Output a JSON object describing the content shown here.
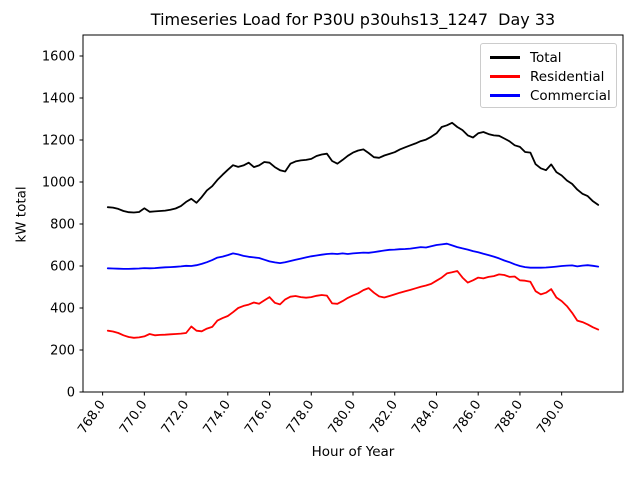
{
  "chart_data": {
    "type": "line",
    "title": "Timeseries Load for P30U p30uhs13_1247  Day 33",
    "xlabel": "Hour of Year",
    "ylabel": "kW total",
    "xlim": [
      767.06,
      792.94
    ],
    "ylim": [
      0,
      1700
    ],
    "grid": false,
    "legend_position": "upper right",
    "xticks": [
      768,
      770,
      772,
      774,
      776,
      778,
      780,
      782,
      784,
      786,
      788,
      790
    ],
    "xtick_labels": [
      "768.0",
      "770.0",
      "772.0",
      "774.0",
      "776.0",
      "778.0",
      "780.0",
      "782.0",
      "784.0",
      "786.0",
      "788.0",
      "790.0"
    ],
    "xtick_rotation_deg": 55,
    "yticks": [
      0,
      200,
      400,
      600,
      800,
      1000,
      1200,
      1400,
      1600
    ],
    "ytick_labels": [
      "0",
      "200",
      "400",
      "600",
      "800",
      "1000",
      "1200",
      "1400",
      "1600"
    ],
    "x": [
      768.25,
      768.5,
      768.75,
      769.0,
      769.25,
      769.5,
      769.75,
      770.0,
      770.25,
      770.5,
      770.75,
      771.0,
      771.25,
      771.5,
      771.75,
      772.0,
      772.25,
      772.5,
      772.75,
      773.0,
      773.25,
      773.5,
      773.75,
      774.0,
      774.25,
      774.5,
      774.75,
      775.0,
      775.25,
      775.5,
      775.75,
      776.0,
      776.25,
      776.5,
      776.75,
      777.0,
      777.25,
      777.5,
      777.75,
      778.0,
      778.25,
      778.5,
      778.75,
      779.0,
      779.25,
      779.5,
      779.75,
      780.0,
      780.25,
      780.5,
      780.75,
      781.0,
      781.25,
      781.5,
      781.75,
      782.0,
      782.25,
      782.5,
      782.75,
      783.0,
      783.25,
      783.5,
      783.75,
      784.0,
      784.25,
      784.5,
      784.75,
      785.0,
      785.25,
      785.5,
      785.75,
      786.0,
      786.25,
      786.5,
      786.75,
      787.0,
      787.25,
      787.5,
      787.75,
      788.0,
      788.25,
      788.5,
      788.75,
      789.0,
      789.25,
      789.5,
      789.75,
      790.0,
      790.25,
      790.5,
      790.75,
      791.0,
      791.25,
      791.5,
      791.75
    ],
    "series": [
      {
        "name": "Total",
        "color": "#000000",
        "values": [
          880,
          878,
          872,
          862,
          856,
          855,
          857,
          875,
          858,
          860,
          862,
          864,
          868,
          874,
          885,
          905,
          920,
          901,
          928,
          960,
          980,
          1010,
          1035,
          1058,
          1080,
          1072,
          1079,
          1092,
          1071,
          1079,
          1095,
          1092,
          1071,
          1056,
          1050,
          1087,
          1098,
          1103,
          1105,
          1110,
          1124,
          1131,
          1135,
          1100,
          1087,
          1105,
          1125,
          1140,
          1150,
          1155,
          1138,
          1118,
          1115,
          1126,
          1134,
          1142,
          1155,
          1165,
          1175,
          1184,
          1195,
          1202,
          1215,
          1232,
          1262,
          1270,
          1282,
          1262,
          1247,
          1222,
          1212,
          1232,
          1238,
          1228,
          1222,
          1220,
          1207,
          1194,
          1175,
          1167,
          1143,
          1140,
          1085,
          1065,
          1056,
          1084,
          1047,
          1031,
          1007,
          991,
          964,
          944,
          933,
          908,
          891
        ]
      },
      {
        "name": "Residential",
        "color": "#ff0000",
        "values": [
          292,
          288,
          281,
          270,
          262,
          258,
          260,
          265,
          276,
          270,
          272,
          273,
          275,
          276,
          278,
          281,
          312,
          292,
          289,
          302,
          310,
          340,
          352,
          362,
          380,
          400,
          410,
          416,
          426,
          420,
          436,
          452,
          425,
          417,
          441,
          454,
          457,
          452,
          449,
          452,
          458,
          462,
          459,
          422,
          420,
          433,
          448,
          460,
          470,
          485,
          495,
          473,
          455,
          450,
          457,
          465,
          473,
          480,
          486,
          494,
          501,
          507,
          515,
          530,
          545,
          565,
          570,
          576,
          545,
          521,
          532,
          545,
          541,
          548,
          552,
          560,
          557,
          548,
          550,
          532,
          530,
          525,
          480,
          465,
          473,
          490,
          450,
          433,
          409,
          377,
          340,
          333,
          322,
          308,
          297
        ]
      },
      {
        "name": "Commercial",
        "color": "#0000ff",
        "values": [
          589,
          588,
          587,
          586,
          586,
          587,
          588,
          590,
          589,
          590,
          592,
          594,
          595,
          596,
          598,
          601,
          600,
          604,
          610,
          618,
          628,
          640,
          645,
          652,
          660,
          655,
          648,
          644,
          641,
          638,
          630,
          622,
          617,
          614,
          618,
          624,
          630,
          635,
          641,
          646,
          650,
          654,
          657,
          659,
          657,
          660,
          657,
          660,
          662,
          664,
          663,
          666,
          670,
          674,
          677,
          678,
          680,
          681,
          683,
          686,
          690,
          688,
          694,
          700,
          703,
          706,
          698,
          690,
          684,
          678,
          671,
          665,
          658,
          652,
          645,
          636,
          626,
          618,
          608,
          600,
          595,
          592,
          592,
          592,
          593,
          595,
          597,
          600,
          602,
          603,
          598,
          602,
          604,
          601,
          597
        ]
      }
    ]
  }
}
